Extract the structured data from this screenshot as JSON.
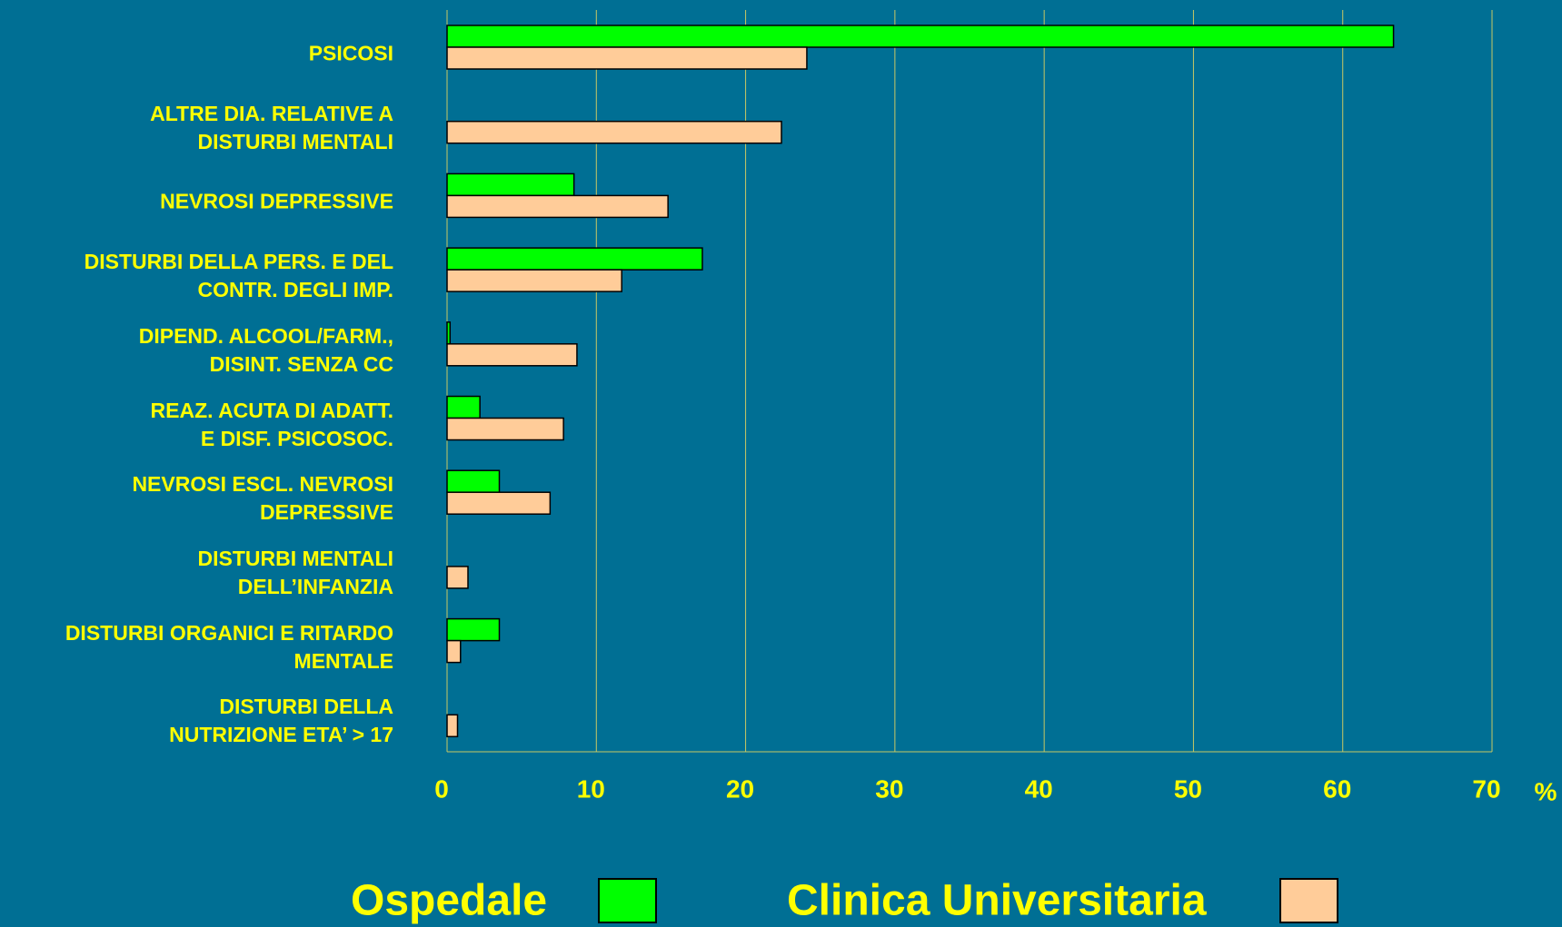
{
  "chart_data": {
    "type": "bar",
    "orientation": "horizontal",
    "categories": [
      "PSICOSI",
      "ALTRE DIA. RELATIVE A\nDISTURBI MENTALI",
      "NEVROSI DEPRESSIVE",
      "DISTURBI  DELLA PERS. E DEL\nCONTR. DEGLI  IMP.",
      "DIPEND. ALCOOL/FARM.,\nDISINT. SENZA CC",
      "REAZ. ACUTA DI ADATT.\nE DISF. PSICOSOC.",
      "NEVROSI ESCL. NEVROSI\nDEPRESSIVE",
      "DISTURBI MENTALI\nDELL’INFANZIA",
      "DISTURBI ORGANICI E RITARDO\nMENTALE",
      "DISTURBI DELLA\nNUTRIZIONE ETA’ > 17"
    ],
    "series": [
      {
        "name": "Ospedale",
        "color": "#00ff00",
        "values": [
          63.4,
          null,
          8.5,
          17.1,
          0.2,
          2.2,
          3.5,
          null,
          3.5,
          null
        ]
      },
      {
        "name": "Clinica Universitaria",
        "color": "#ffcc99",
        "values": [
          24.1,
          22.4,
          14.8,
          11.7,
          8.7,
          7.8,
          6.9,
          1.4,
          0.9,
          0.7
        ]
      }
    ],
    "x_label": "%",
    "xlim": [
      0,
      70
    ],
    "xticks": [
      0,
      10,
      20,
      30,
      40,
      50,
      60,
      70
    ],
    "grid": true
  }
}
